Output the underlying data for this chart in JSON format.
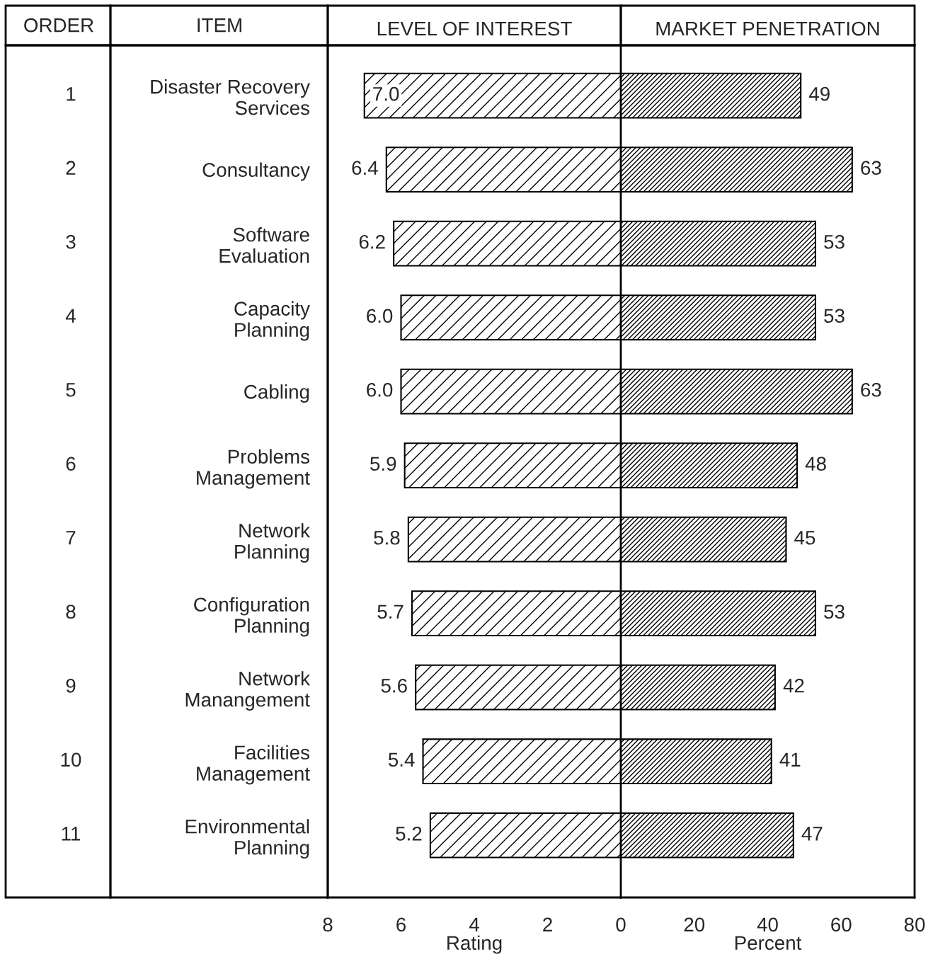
{
  "chart_data": [
    {
      "type": "bar",
      "orientation": "horizontal",
      "title": "LEVEL OF INTEREST",
      "xlabel": "Rating",
      "categories": [
        "Disaster Recovery\nServices",
        "Consultancy",
        "Software\nEvaluation",
        "Capacity\nPlanning",
        "Cabling",
        "Problems\nManagement",
        "Network\nPlanning",
        "Configuration\nPlanning",
        "Network\nManangement",
        "Facilities\nManagement",
        "Environmental\nPlanning"
      ],
      "values": [
        7.0,
        6.4,
        6.2,
        6.0,
        6.0,
        5.9,
        5.8,
        5.7,
        5.6,
        5.4,
        5.2
      ],
      "value_labels": [
        "7.0",
        "6.4",
        "6.2",
        "6.0",
        "6.0",
        "5.9",
        "5.8",
        "5.7",
        "5.6",
        "5.4",
        "5.2"
      ],
      "color": "#000000",
      "xlim": [
        8,
        0
      ],
      "xticks": [
        8,
        6,
        4,
        2,
        0
      ],
      "annotations": [
        "ORDER",
        "ITEM",
        "1",
        "2",
        "3",
        "4",
        "5",
        "6",
        "7",
        "8",
        "9",
        "10",
        "11"
      ]
    },
    {
      "type": "bar",
      "orientation": "horizontal",
      "title": "MARKET PENETRATION",
      "xlabel": "Percent",
      "categories": [
        null,
        null,
        null,
        null,
        null,
        null,
        null,
        null,
        null,
        null,
        null
      ],
      "values": [
        49,
        63,
        53,
        53,
        63,
        48,
        45,
        53,
        42,
        41,
        47
      ],
      "data_labels": true,
      "color": "#000000",
      "xlim": [
        0,
        80
      ],
      "xticks": [
        20,
        40,
        60,
        80
      ]
    }
  ]
}
